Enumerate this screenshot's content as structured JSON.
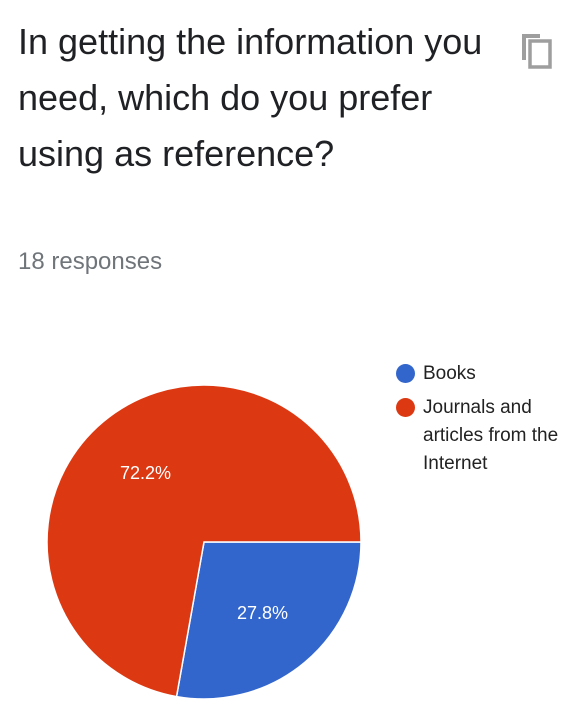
{
  "question": {
    "title": "In getting the information you need, which do you prefer using as reference?",
    "responses": "18 responses",
    "copy_icon": "copy-icon"
  },
  "chart_data": {
    "type": "pie",
    "categories": [
      "Books",
      "Journals and articles from the Internet"
    ],
    "values": [
      27.8,
      72.2
    ],
    "labels": [
      "27.8%",
      "72.2%"
    ],
    "colors": [
      "#3366cc",
      "#dc3912"
    ],
    "legend_position": "right"
  }
}
